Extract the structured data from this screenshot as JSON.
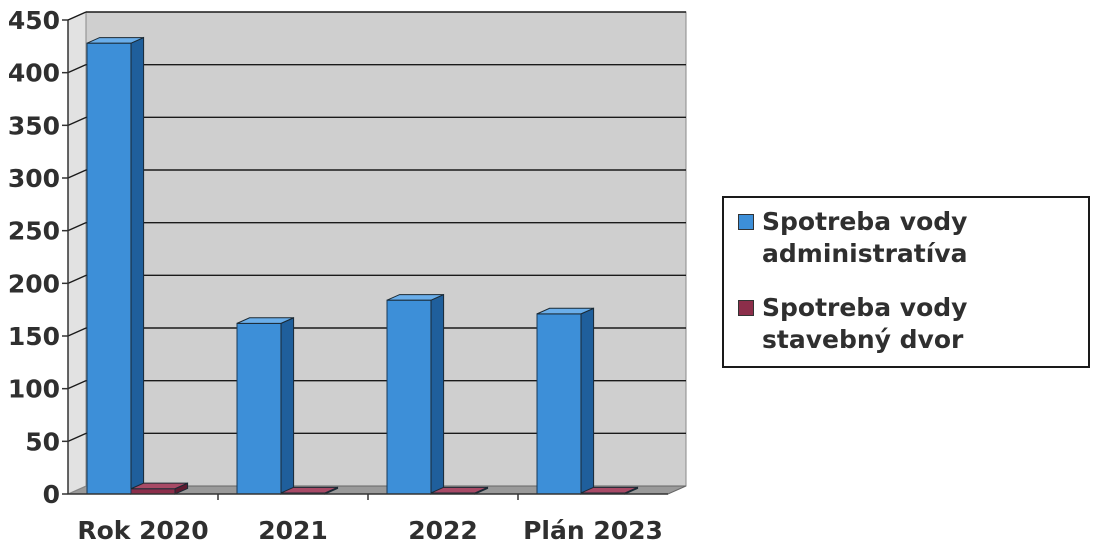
{
  "chart_data": {
    "type": "bar",
    "categories": [
      "Rok 2020",
      "2021",
      "2022",
      "Plán 2023"
    ],
    "series": [
      {
        "name": "Spotreba vody administratíva",
        "values": [
          428,
          162,
          184,
          171
        ]
      },
      {
        "name": "Spotreba vody stavebný dvor",
        "values": [
          5,
          1,
          1,
          1
        ]
      }
    ],
    "ylim": [
      0,
      450
    ],
    "yticks": [
      0,
      50,
      100,
      150,
      200,
      250,
      300,
      350,
      400,
      450
    ],
    "grid": true,
    "legend_position": "right",
    "title": "",
    "xlabel": "",
    "ylabel": ""
  },
  "colors": {
    "series_1_front": "#3d8fd8",
    "series_1_side": "#1f5f9c",
    "series_1_top": "#6aaeea",
    "series_2_front": "#8c2e4a",
    "series_2_side": "#5e1a30",
    "series_2_top": "#a84a66",
    "plot_back": "#cfcfcf",
    "floor": "#9a9a9a",
    "gridline": "#1a1a1a"
  }
}
